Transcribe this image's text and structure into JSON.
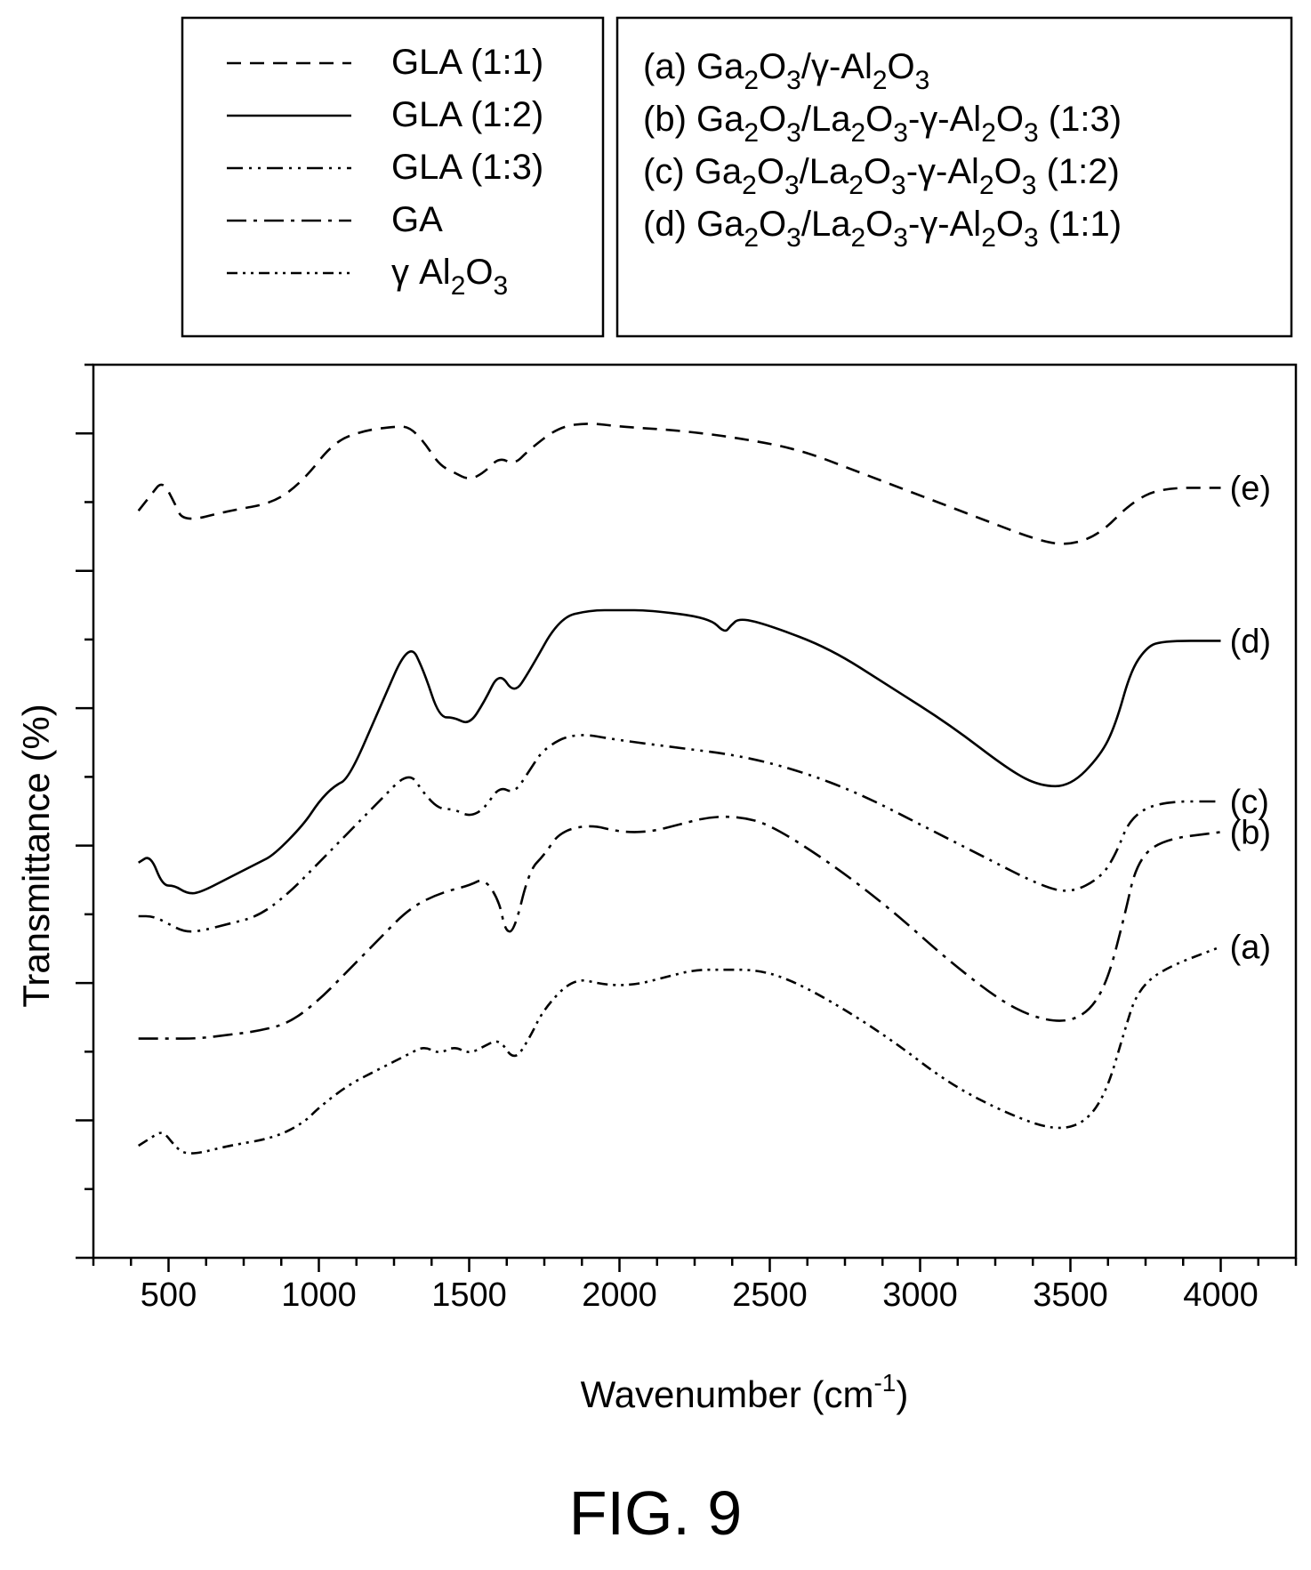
{
  "figure_caption": "FIG. 9",
  "chart_data": {
    "type": "line",
    "xlabel": "Wavenumber (cm",
    "xlabel_sup": "-1",
    "xlabel_end": ")",
    "ylabel": "Transmittance (%)",
    "xlim": [
      250,
      4250
    ],
    "x_ticks": [
      500,
      1000,
      1500,
      2000,
      2500,
      3000,
      3500,
      4000
    ],
    "x_tick_labels": [
      "500",
      "1000",
      "1500",
      "2000",
      "2500",
      "3000",
      "3500",
      "4000"
    ],
    "y_ticks_shown": false,
    "grid": false,
    "legend_styles": {
      "position": "top-left",
      "entries": [
        {
          "label": "GLA (1:1)",
          "dash": "dashed"
        },
        {
          "label": "GLA (1:2)",
          "dash": "solid"
        },
        {
          "label": "GLA (1:3)",
          "dash": "dash-dot-dot"
        },
        {
          "label": "GA",
          "dash": "dash-dot"
        },
        {
          "label": "γ Al",
          "sub1": "2",
          "mid": "O",
          "sub2": "3",
          "dash": "dash-dot-dot-tight"
        }
      ]
    },
    "legend_samples": {
      "position": "top-right",
      "entries": [
        {
          "parts": [
            "(a) Ga",
            "2",
            "O",
            "3",
            "/γ-Al",
            "2",
            "O",
            "3"
          ]
        },
        {
          "parts": [
            "(b) Ga",
            "2",
            "O",
            "3",
            "/La",
            "2",
            "O",
            "3",
            "-γ-Al",
            "2",
            "O",
            "3",
            " (1:3)"
          ]
        },
        {
          "parts": [
            "(c) Ga",
            "2",
            "O",
            "3",
            "/La",
            "2",
            "O",
            "3",
            "-γ-Al",
            "2",
            "O",
            "3",
            " (1:2)"
          ]
        },
        {
          "parts": [
            "(d) Ga",
            "2",
            "O",
            "3",
            "/La",
            "2",
            "O",
            "3",
            "-γ-Al",
            "2",
            "O",
            "3",
            " (1:1)"
          ]
        }
      ]
    },
    "series": [
      {
        "label": "(e)",
        "dash": "dashed",
        "x": [
          400,
          440,
          480,
          520,
          550,
          700,
          850,
          950,
          1050,
          1150,
          1250,
          1300,
          1350,
          1400,
          1450,
          1500,
          1550,
          1600,
          1650,
          1700,
          1800,
          1900,
          2000,
          2200,
          2400,
          2600,
          2800,
          3000,
          3200,
          3400,
          3500,
          3600,
          3700,
          3800,
          4000
        ],
        "y": [
          0.93,
          0.95,
          0.97,
          0.94,
          0.915,
          0.93,
          0.94,
          0.97,
          1.02,
          1.035,
          1.04,
          1.04,
          1.02,
          0.99,
          0.98,
          0.97,
          0.98,
          1.0,
          0.99,
          1.01,
          1.04,
          1.045,
          1.04,
          1.035,
          1.025,
          1.01,
          0.98,
          0.95,
          0.92,
          0.89,
          0.885,
          0.9,
          0.94,
          0.96,
          0.96
        ]
      },
      {
        "label": "(d)",
        "dash": "solid",
        "x": [
          400,
          440,
          480,
          520,
          560,
          600,
          700,
          800,
          850,
          950,
          1000,
          1050,
          1100,
          1200,
          1300,
          1350,
          1400,
          1450,
          1500,
          1550,
          1600,
          1650,
          1700,
          1800,
          1900,
          2000,
          2100,
          2300,
          2350,
          2370,
          2400,
          2500,
          2700,
          2900,
          3100,
          3300,
          3400,
          3500,
          3600,
          3650,
          3700,
          3750,
          3800,
          4000
        ],
        "y": [
          0.47,
          0.48,
          0.44,
          0.44,
          0.43,
          0.43,
          0.45,
          0.47,
          0.48,
          0.52,
          0.55,
          0.57,
          0.58,
          0.67,
          0.76,
          0.72,
          0.66,
          0.66,
          0.65,
          0.68,
          0.72,
          0.69,
          0.72,
          0.79,
          0.8,
          0.8,
          0.8,
          0.79,
          0.77,
          0.78,
          0.79,
          0.78,
          0.75,
          0.7,
          0.65,
          0.59,
          0.57,
          0.57,
          0.61,
          0.65,
          0.72,
          0.75,
          0.76,
          0.76
        ]
      },
      {
        "label": "(c)",
        "dash": "dash-dot-dot",
        "x": [
          400,
          450,
          500,
          550,
          600,
          700,
          800,
          900,
          1000,
          1100,
          1200,
          1300,
          1350,
          1400,
          1450,
          1500,
          1550,
          1600,
          1650,
          1700,
          1750,
          1850,
          2000,
          2200,
          2400,
          2600,
          2800,
          3000,
          3200,
          3400,
          3500,
          3600,
          3650,
          3700,
          3800,
          4000
        ],
        "y": [
          0.4,
          0.4,
          0.39,
          0.38,
          0.38,
          0.39,
          0.4,
          0.43,
          0.47,
          0.51,
          0.55,
          0.59,
          0.56,
          0.54,
          0.54,
          0.53,
          0.54,
          0.57,
          0.56,
          0.59,
          0.62,
          0.64,
          0.63,
          0.62,
          0.61,
          0.59,
          0.56,
          0.52,
          0.48,
          0.44,
          0.43,
          0.45,
          0.48,
          0.53,
          0.55,
          0.55
        ]
      },
      {
        "label": "(b)",
        "dash": "dash-dot",
        "x": [
          400,
          500,
          600,
          700,
          800,
          900,
          1000,
          1100,
          1200,
          1300,
          1400,
          1500,
          1550,
          1600,
          1620,
          1650,
          1700,
          1750,
          1800,
          1900,
          2000,
          2100,
          2200,
          2300,
          2400,
          2500,
          2700,
          2900,
          3100,
          3300,
          3450,
          3550,
          3620,
          3680,
          3720,
          3800,
          4000
        ],
        "y": [
          0.24,
          0.24,
          0.24,
          0.245,
          0.25,
          0.26,
          0.29,
          0.33,
          0.37,
          0.41,
          0.43,
          0.44,
          0.45,
          0.42,
          0.38,
          0.38,
          0.46,
          0.48,
          0.51,
          0.52,
          0.51,
          0.51,
          0.52,
          0.53,
          0.53,
          0.52,
          0.47,
          0.41,
          0.34,
          0.28,
          0.26,
          0.27,
          0.31,
          0.4,
          0.47,
          0.5,
          0.51
        ]
      },
      {
        "label": "(a)",
        "dash": "dash-dot-dot-tight",
        "x": [
          400,
          440,
          480,
          520,
          550,
          600,
          700,
          850,
          950,
          1000,
          1100,
          1200,
          1300,
          1350,
          1400,
          1450,
          1500,
          1550,
          1600,
          1650,
          1700,
          1750,
          1850,
          1950,
          2050,
          2150,
          2250,
          2350,
          2450,
          2550,
          2700,
          2900,
          3100,
          3300,
          3450,
          3550,
          3620,
          3680,
          3720,
          3800,
          4000
        ],
        "y": [
          0.1,
          0.11,
          0.12,
          0.1,
          0.09,
          0.09,
          0.1,
          0.11,
          0.13,
          0.15,
          0.18,
          0.2,
          0.22,
          0.23,
          0.22,
          0.23,
          0.22,
          0.23,
          0.24,
          0.21,
          0.24,
          0.28,
          0.32,
          0.31,
          0.31,
          0.32,
          0.33,
          0.33,
          0.33,
          0.32,
          0.29,
          0.24,
          0.18,
          0.14,
          0.12,
          0.13,
          0.17,
          0.25,
          0.3,
          0.33,
          0.36
        ]
      }
    ]
  }
}
